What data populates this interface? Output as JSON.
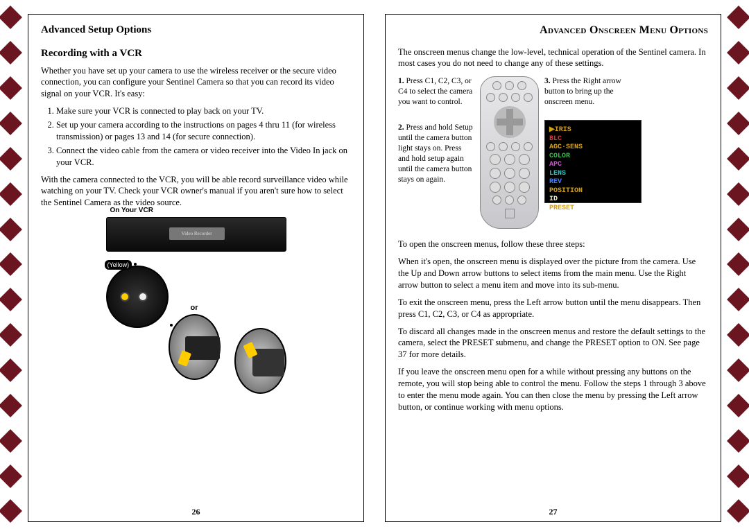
{
  "left": {
    "heading": "Advanced Setup Options",
    "subheading": "Recording with a VCR",
    "intro": "Whether you have set up your camera to use the wireless receiver or the secure video connection, you can configure your Sentinel Camera so that you can record its video signal on your VCR. It's easy:",
    "steps": [
      "Make sure your VCR is connected to play back on your TV.",
      "Set up your camera according to the instructions on pages 4 thru 11 (for wireless transmission) or pages 13 and 14 (for secure connection).",
      "Connect the video cable from the camera or video receiver into the Video In jack on your VCR."
    ],
    "outro": "With the camera connected to the VCR, you will be able record surveillance video while watching on your TV. Check your VCR owner's manual if you aren't sure how to select the Sentinel Camera as the video source.",
    "fig": {
      "top_label": "On Your VCR",
      "yellow_label": "(Yellow)",
      "or_label": "or",
      "vcr_display": "Video Recorder"
    },
    "page_num": "26"
  },
  "right": {
    "heading": "Advanced Onscreen Menu Options",
    "intro": "The onscreen menus change the low-level, technical operation of the Sentinel camera. In most cases you do not need to change any of these settings.",
    "step1_num": "1.",
    "step1": "Press C1, C2, C3, or C4 to select the camera you want to control.",
    "step2_num": "2.",
    "step2": "Press and hold Setup until the camera button light stays on. Press and hold setup again until the camera button stays on again.",
    "step3_num": "3.",
    "step3": "Press the Right arrow button to bring up the onscreen menu.",
    "osd_lines": [
      {
        "text": "▶IRIS",
        "cls": "c-y"
      },
      {
        "text": " BLC",
        "cls": "c-r"
      },
      {
        "text": " AGC·SENS",
        "cls": "c-y"
      },
      {
        "text": " COLOR",
        "cls": "c-g"
      },
      {
        "text": " APC",
        "cls": "c-m"
      },
      {
        "text": " LENS",
        "cls": "c-c"
      },
      {
        "text": " REV",
        "cls": "c-b"
      },
      {
        "text": " POSITION",
        "cls": "c-y"
      },
      {
        "text": " ID",
        "cls": "c-w"
      },
      {
        "text": " PRESET",
        "cls": "c-y"
      }
    ],
    "open_line": "To open the onscreen menus, follow these three steps:",
    "p1": "When it's open, the onscreen menu is displayed over the picture from the camera. Use the Up and Down arrow buttons to select items from the main menu. Use the Right arrow button to select a menu item and move into its sub-menu.",
    "p2": "To exit the onscreen menu, press the Left arrow button until the menu disappears. Then press C1, C2, C3, or C4 as appropriate.",
    "p3": "To discard all changes made in the onscreen menus and restore the default settings to the camera, select the PRESET submenu, and change the PRESET option to ON. See page 37 for more details.",
    "p4": "If you leave the onscreen menu open for a while without pressing any buttons on the remote, you will stop being able to control the menu. Follow the steps 1 through 3 above to enter the menu mode again. You can then close the menu by pressing the Left arrow button, or continue working with menu options.",
    "page_num": "27"
  },
  "colors": {
    "diamond": "#6b1520",
    "osd_bg": "#000000"
  }
}
